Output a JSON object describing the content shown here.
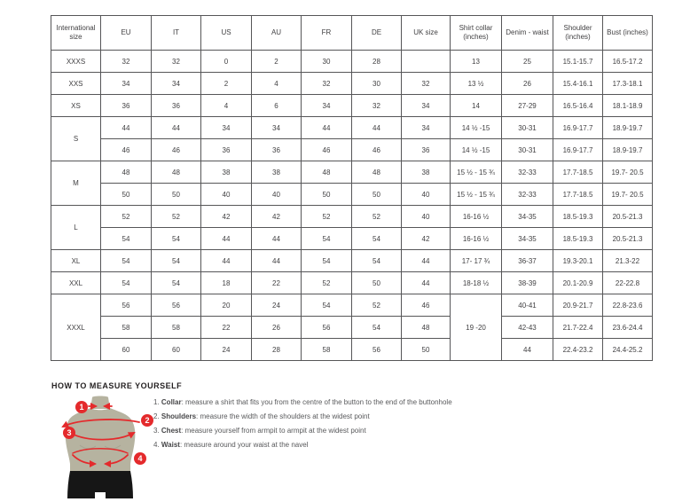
{
  "colors": {
    "accent_red": "#e42a2c",
    "mannequin_body": "#b6b3a0",
    "mannequin_shorts": "#161616",
    "table_border": "#565658",
    "text": "#414042"
  },
  "size_chart": {
    "columns": [
      "International size",
      "EU",
      "IT",
      "US",
      "AU",
      "FR",
      "DE",
      "UK size",
      "Shirt collar (inches)",
      "Denim - waist",
      "Shoulder (inches)",
      "Bust (inches)"
    ],
    "groups": [
      {
        "size": "XXXS",
        "rows": [
          [
            "32",
            "32",
            "0",
            "2",
            "30",
            "28",
            "",
            "13",
            "25",
            "15.1-15.7",
            "16.5-17.2"
          ]
        ]
      },
      {
        "size": "XXS",
        "rows": [
          [
            "34",
            "34",
            "2",
            "4",
            "32",
            "30",
            "32",
            "13 ½",
            "26",
            "15.4-16.1",
            "17.3-18.1"
          ]
        ]
      },
      {
        "size": "XS",
        "rows": [
          [
            "36",
            "36",
            "4",
            "6",
            "34",
            "32",
            "34",
            "14",
            "27-29",
            "16.5-16.4",
            "18.1-18.9"
          ]
        ]
      },
      {
        "size": "S",
        "rows": [
          [
            "44",
            "44",
            "34",
            "34",
            "44",
            "44",
            "34",
            "14 ½ -15",
            "30-31",
            "16.9-17.7",
            "18.9-19.7"
          ],
          [
            "46",
            "46",
            "36",
            "36",
            "46",
            "46",
            "36",
            "14 ½ -15",
            "30-31",
            "16.9-17.7",
            "18.9-19.7"
          ]
        ]
      },
      {
        "size": "M",
        "rows": [
          [
            "48",
            "48",
            "38",
            "38",
            "48",
            "48",
            "38",
            "15 ½ - 15 ¾",
            "32-33",
            "17.7-18.5",
            "19.7- 20.5"
          ],
          [
            "50",
            "50",
            "40",
            "40",
            "50",
            "50",
            "40",
            "15 ½ - 15 ¾",
            "32-33",
            "17.7-18.5",
            "19.7- 20.5"
          ]
        ]
      },
      {
        "size": "L",
        "rows": [
          [
            "52",
            "52",
            "42",
            "42",
            "52",
            "52",
            "40",
            "16-16 ½",
            "34-35",
            "18.5-19.3",
            "20.5-21.3"
          ],
          [
            "54",
            "54",
            "44",
            "44",
            "54",
            "54",
            "42",
            "16-16 ½",
            "34-35",
            "18.5-19.3",
            "20.5-21.3"
          ]
        ]
      },
      {
        "size": "XL",
        "rows": [
          [
            "54",
            "54",
            "44",
            "44",
            "54",
            "54",
            "44",
            "17- 17 ¾",
            "36-37",
            "19.3-20.1",
            "21.3-22"
          ]
        ]
      },
      {
        "size": "XXL",
        "rows": [
          [
            "54",
            "54",
            "18",
            "22",
            "52",
            "50",
            "44",
            "18-18 ½",
            "38-39",
            "20.1-20.9",
            "22-22.8"
          ]
        ]
      },
      {
        "size": "XXXL",
        "collar_merged": true,
        "rows": [
          [
            "56",
            "56",
            "20",
            "24",
            "54",
            "52",
            "46",
            "19 -20",
            "40-41",
            "20.9-21.7",
            "22.8-23.6"
          ],
          [
            "58",
            "58",
            "22",
            "26",
            "56",
            "54",
            "48",
            "",
            "42-43",
            "21.7-22.4",
            "23.6-24.4"
          ],
          [
            "60",
            "60",
            "24",
            "28",
            "58",
            "56",
            "50",
            "",
            "44",
            "22.4-23.2",
            "24.4-25.2"
          ]
        ]
      }
    ]
  },
  "measure": {
    "heading": "HOW TO MEASURE YOURSELF",
    "badges": [
      "1",
      "2",
      "3",
      "4"
    ],
    "steps": [
      {
        "num": "1. ",
        "label": "Collar",
        "text": ": measure a shirt that fits you from the centre of the button to the end of the buttonhole"
      },
      {
        "num": "2. ",
        "label": "Shoulders",
        "text": ": measure the width of the shoulders at the widest point"
      },
      {
        "num": "3. ",
        "label": "Chest",
        "text": ": measure yourself from armpit to armpit at the widest point"
      },
      {
        "num": "4. ",
        "label": "Waist",
        "text": ": measure around your waist at the navel"
      }
    ]
  }
}
